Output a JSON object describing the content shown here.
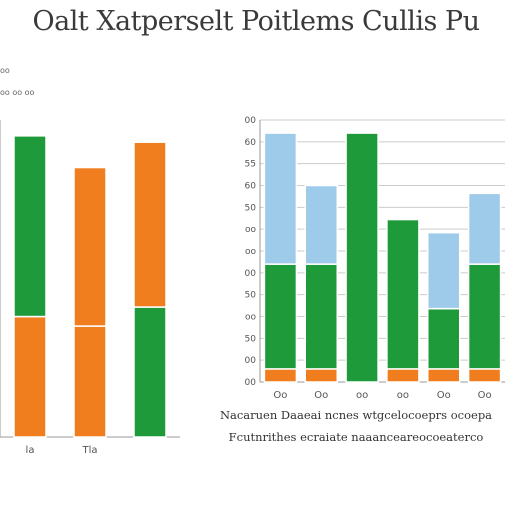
{
  "title": "Oalt Xatperselt Poitlems Cullis Pu",
  "legend_small": [
    "oo",
    "oo oo oo"
  ],
  "captions": [
    "Nacaruen Daaeai ncnes wtgcelocoeprs ocoepa",
    "Fcutnrithes ecraiate naaanceareocoeaterco"
  ],
  "colors": {
    "green": "#1e9a3a",
    "orange": "#f07d1e",
    "light_blue": "#9fcbea",
    "axis": "#999999",
    "grid": "#cccccc"
  },
  "chart_data": [
    {
      "type": "bar",
      "stacked": true,
      "categories": [
        "la",
        "Tla",
        ""
      ],
      "series": [
        {
          "color": "#f07d1e",
          "values": [
            38,
            35,
            0
          ]
        },
        {
          "color": "#1e9a3a",
          "values": [
            57,
            0,
            41
          ]
        },
        {
          "color": "#f07d1e",
          "values": [
            0,
            50,
            52
          ]
        }
      ],
      "ylim": [
        0,
        100
      ]
    },
    {
      "type": "bar",
      "stacked": true,
      "categories": [
        "Oo",
        "Oo",
        "oo",
        "oo",
        "Oo",
        "Oo"
      ],
      "y_ticks": [
        "00",
        "00",
        "50",
        "oo",
        "50",
        "00",
        "oo",
        "oo",
        "50",
        "60",
        "55",
        "60",
        "00"
      ],
      "series": [
        {
          "color": "#f07d1e",
          "values": [
            5,
            5,
            0,
            5,
            5,
            5
          ]
        },
        {
          "color": "#1e9a3a",
          "values": [
            40,
            40,
            95,
            57,
            23,
            40
          ]
        },
        {
          "color": "#9fcbea",
          "values": [
            50,
            30,
            0,
            0,
            29,
            27
          ]
        }
      ],
      "ylim": [
        0,
        100
      ]
    }
  ]
}
